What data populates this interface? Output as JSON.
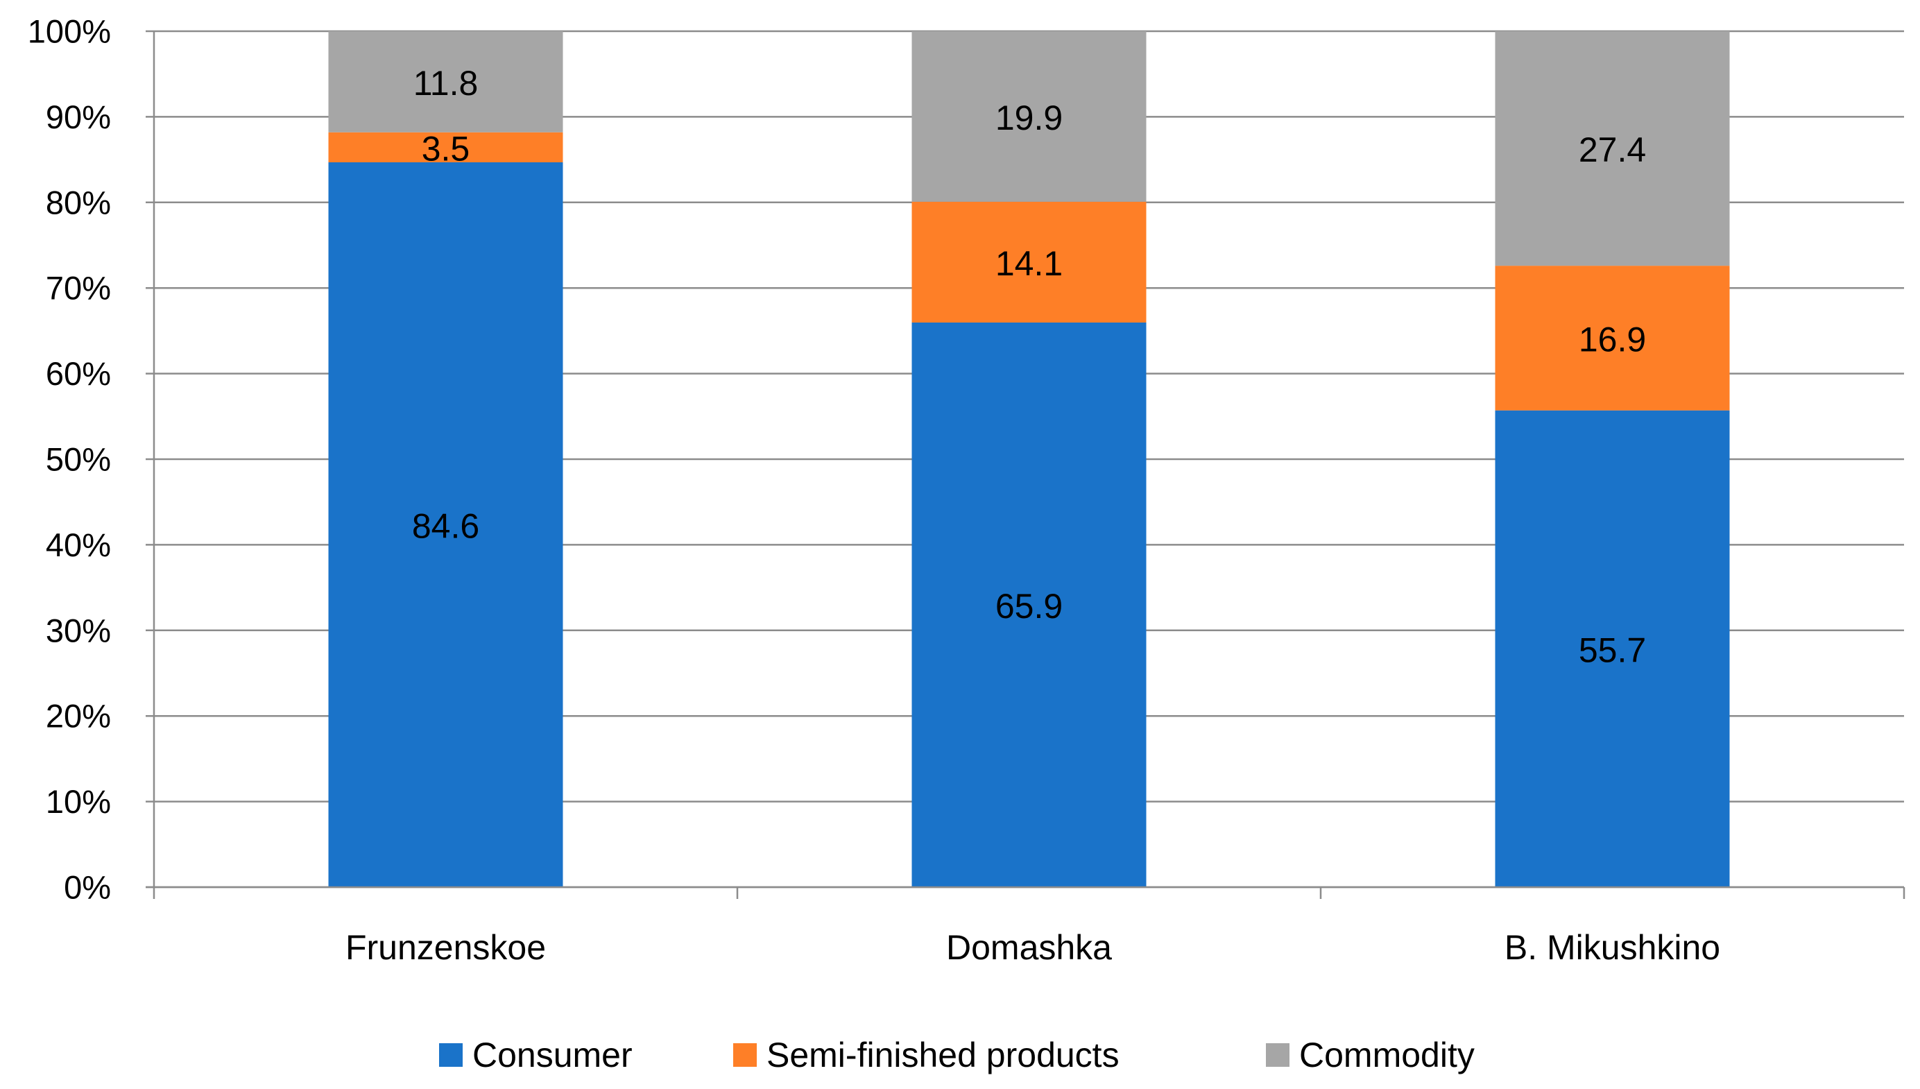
{
  "chart_data": {
    "type": "bar",
    "stacked": true,
    "percent_stacked": true,
    "title": "",
    "xlabel": "",
    "ylabel": "",
    "categories": [
      "Frunzenskoe",
      "Domashka",
      "B. Mikushkino"
    ],
    "series": [
      {
        "name": "Consumer",
        "color": "#1a73c9",
        "values": [
          84.6,
          65.9,
          55.7
        ]
      },
      {
        "name": "Semi-finished products",
        "color": "#fe7f27",
        "values": [
          3.5,
          14.1,
          16.9
        ]
      },
      {
        "name": "Commodity",
        "color": "#a6a6a6",
        "values": [
          11.8,
          19.9,
          27.4
        ]
      }
    ],
    "ylim": [
      0,
      100
    ],
    "yticks": [
      "0%",
      "10%",
      "20%",
      "30%",
      "40%",
      "50%",
      "60%",
      "70%",
      "80%",
      "90%",
      "100%"
    ],
    "data_labels": [
      [
        "84.6",
        "65.9",
        "55.7"
      ],
      [
        "3.5",
        "14.1",
        "16.9"
      ],
      [
        "11.8",
        "19.9",
        "27.4"
      ]
    ],
    "grid": true,
    "legend_position": "bottom"
  }
}
